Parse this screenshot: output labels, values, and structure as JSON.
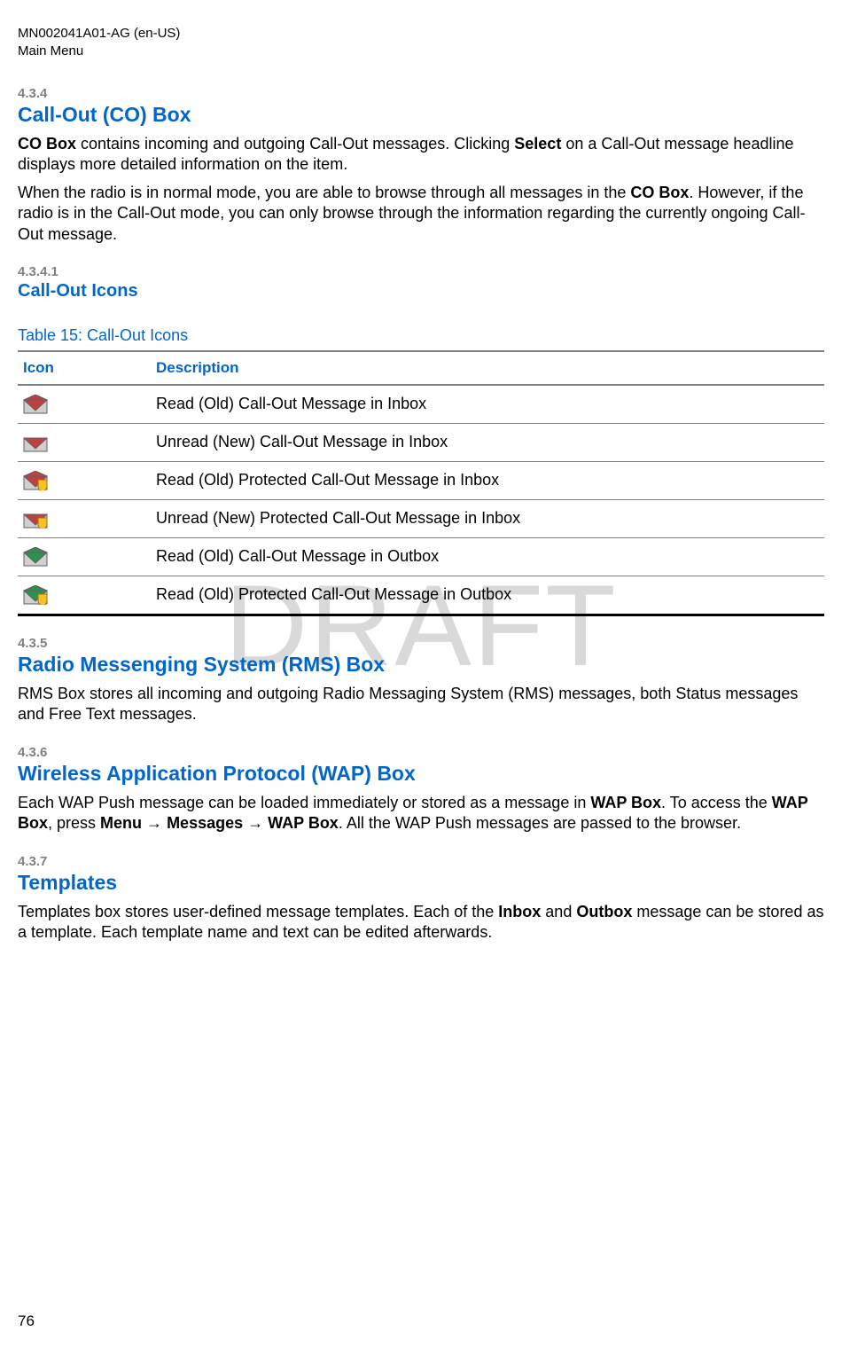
{
  "header": {
    "doc_id": "MN002041A01-AG (en-US)",
    "breadcrumb": "Main Menu"
  },
  "watermark_text": "DRAFT",
  "sections": {
    "s434": {
      "num": "4.3.4",
      "title": "Call-Out (CO) Box",
      "p1_parts": {
        "t0": "CO Box",
        "t1": " contains incoming and outgoing Call-Out messages. Clicking ",
        "t2": "Select",
        "t3": " on a Call-Out message headline displays more detailed information on the item."
      },
      "p2_parts": {
        "t0": "When the radio is in normal mode, you are able to browse through all messages in the ",
        "t1": "CO Box",
        "t2": ". However, if the radio is in the Call-Out mode, you can only browse through the information regarding the currently ongoing Call-Out message."
      }
    },
    "s4341": {
      "num": "4.3.4.1",
      "title": "Call-Out Icons",
      "table_caption": "Table 15: Call-Out Icons",
      "thead": {
        "col1": "Icon",
        "col2": "Description"
      },
      "rows": [
        {
          "icon": {
            "base": "#d0d0d0",
            "flap": "#c04040",
            "shield": false,
            "open": true
          },
          "desc": "Read (Old) Call-Out Message in Inbox"
        },
        {
          "icon": {
            "base": "#d0d0d0",
            "flap": "#c04040",
            "shield": false,
            "open": false
          },
          "desc": "Unread (New) Call-Out Message in Inbox"
        },
        {
          "icon": {
            "base": "#d0d0d0",
            "flap": "#c04040",
            "shield": true,
            "open": true
          },
          "desc": "Read (Old) Protected Call-Out Message in Inbox"
        },
        {
          "icon": {
            "base": "#d0d0d0",
            "flap": "#c04040",
            "shield": true,
            "open": false
          },
          "desc": "Unread (New) Protected Call-Out Message in Inbox"
        },
        {
          "icon": {
            "base": "#d0d0d0",
            "flap": "#2f8f4f",
            "shield": false,
            "open": true
          },
          "desc": "Read (Old) Call-Out Message in Outbox"
        },
        {
          "icon": {
            "base": "#d0d0d0",
            "flap": "#2f8f4f",
            "shield": true,
            "open": true
          },
          "desc": "Read (Old) Protected Call-Out Message in Outbox"
        }
      ]
    },
    "s435": {
      "num": "4.3.5",
      "title": "Radio Messenging System (RMS) Box",
      "p": "RMS Box stores all incoming and outgoing Radio Messaging System (RMS) messages, both Status messages and Free Text messages."
    },
    "s436": {
      "num": "4.3.6",
      "title": "Wireless Application Protocol (WAP) Box",
      "p_parts": {
        "t0": "Each WAP Push message can be loaded immediately or stored as a message in ",
        "t1": "WAP Box",
        "t2": ". To access the ",
        "t3": "WAP Box",
        "t4": ", press ",
        "t5": "Menu",
        "t6": " → ",
        "t7": "Messages",
        "t8": " → ",
        "t9": "WAP Box",
        "t10": ". All the WAP Push messages are passed to the browser."
      }
    },
    "s437": {
      "num": "4.3.7",
      "title": "Templates",
      "p_parts": {
        "t0": "Templates box stores user-defined message templates. Each of the ",
        "t1": "Inbox",
        "t2": " and ",
        "t3": "Outbox",
        "t4": " message can be stored as a template. Each template name and text can be edited afterwards."
      }
    }
  },
  "page_number": "76",
  "icon_style": {
    "width": 28,
    "height": 22,
    "shield_fill": "#f5c028",
    "shield_stroke": "#b07000",
    "stroke": "#606060",
    "stroke_width": 1
  }
}
